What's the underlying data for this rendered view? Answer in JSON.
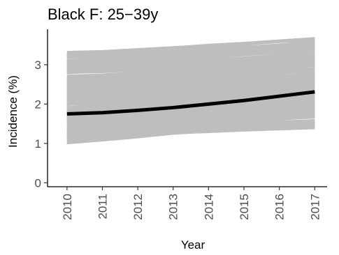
{
  "chart_data": {
    "type": "line",
    "title": "Black F: 25−39y",
    "xlabel": "Year",
    "ylabel": "Incidence (%)",
    "x": [
      2010,
      2011,
      2012,
      2013,
      2014,
      2015,
      2016,
      2017
    ],
    "x_tick_labels": [
      "2010",
      "2011",
      "2012",
      "2013",
      "2014",
      "2015",
      "2016",
      "2017"
    ],
    "y_ticks": [
      0,
      1,
      2,
      3
    ],
    "y_tick_labels": [
      "0",
      "1",
      "2",
      "3"
    ],
    "xlim": [
      2009.45,
      2017.35
    ],
    "ylim": [
      -0.1,
      3.9
    ],
    "grid": false,
    "legend": "none",
    "series": [
      {
        "role": "mean",
        "color": "#000000",
        "values": [
          1.75,
          1.78,
          1.84,
          1.91,
          2.0,
          2.09,
          2.2,
          2.31
        ]
      }
    ],
    "simulations": {
      "color": "#bebebe",
      "count": 300,
      "lower_envelope": [
        1.0,
        1.07,
        1.15,
        1.24,
        1.28,
        1.32,
        1.35,
        1.38
      ],
      "upper_envelope": [
        3.33,
        3.35,
        3.4,
        3.45,
        3.51,
        3.56,
        3.62,
        3.68
      ]
    }
  }
}
